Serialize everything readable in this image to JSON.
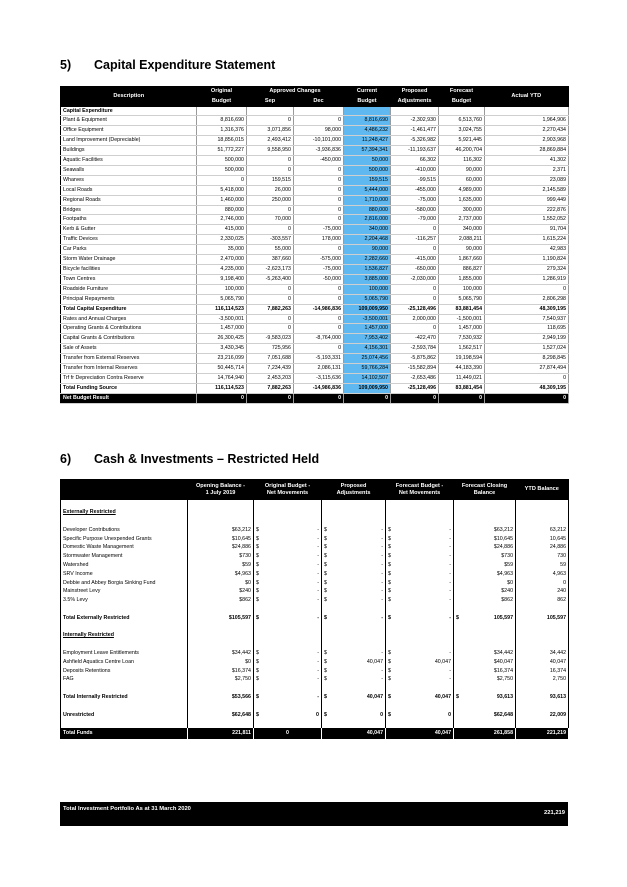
{
  "capex": {
    "number": "5)",
    "title": "Capital Expenditure Statement",
    "headers": {
      "description": "Description",
      "original": [
        "Original",
        "Budget"
      ],
      "approved": "Approved Changes",
      "sep": "Sep",
      "dec": "Dec",
      "current": [
        "Current",
        "Budget"
      ],
      "proposed": [
        "Proposed",
        "Adjustments"
      ],
      "forecast": [
        "Forecast",
        "Budget"
      ],
      "actual": "Actual YTD"
    },
    "rows": [
      {
        "label": "Capital Expenditure",
        "style": "sub",
        "vals": [
          "",
          "",
          "",
          "",
          "",
          "",
          ""
        ]
      },
      {
        "label": "Plant & Equipment",
        "vals": [
          "8,816,690",
          "0",
          "0",
          "8,816,690",
          "-2,302,930",
          "6,513,760",
          "1,964,906"
        ]
      },
      {
        "label": "Office Equipment",
        "vals": [
          "1,316,376",
          "3,071,856",
          "98,000",
          "4,486,232",
          "-1,461,477",
          "3,024,755",
          "2,270,434"
        ]
      },
      {
        "label": "Land Improvement (Depreciable)",
        "vals": [
          "18,856,015",
          "2,493,412",
          "-10,101,000",
          "11,248,427",
          "-5,326,982",
          "5,921,445",
          "2,903,968"
        ]
      },
      {
        "label": "Buildings",
        "vals": [
          "51,772,227",
          "9,558,950",
          "-3,936,836",
          "57,394,341",
          "-11,193,637",
          "46,200,704",
          "28,869,884"
        ]
      },
      {
        "label": "Aquatic Facilities",
        "vals": [
          "500,000",
          "0",
          "-450,000",
          "50,000",
          "66,302",
          "116,302",
          "41,302"
        ]
      },
      {
        "label": "Seawalls",
        "vals": [
          "500,000",
          "0",
          "0",
          "500,000",
          "-410,000",
          "90,000",
          "2,371"
        ]
      },
      {
        "label": "Wharves",
        "vals": [
          "0",
          "159,515",
          "0",
          "159,515",
          "-99,515",
          "60,000",
          "23,089"
        ]
      },
      {
        "label": "Local Roads",
        "vals": [
          "5,418,000",
          "26,000",
          "0",
          "5,444,000",
          "-455,000",
          "4,989,000",
          "2,145,589"
        ]
      },
      {
        "label": "Regional Roads",
        "vals": [
          "1,460,000",
          "250,000",
          "0",
          "1,710,000",
          "-75,000",
          "1,635,000",
          "999,449"
        ]
      },
      {
        "label": "Bridges",
        "vals": [
          "880,000",
          "0",
          "0",
          "880,000",
          "-580,000",
          "300,000",
          "222,876"
        ]
      },
      {
        "label": "Footpaths",
        "vals": [
          "2,746,000",
          "70,000",
          "0",
          "2,816,000",
          "-79,000",
          "2,737,000",
          "1,552,052"
        ]
      },
      {
        "label": "Kerb & Gutter",
        "vals": [
          "415,000",
          "0",
          "-75,000",
          "340,000",
          "0",
          "340,000",
          "91,704"
        ]
      },
      {
        "label": "Traffic Devices",
        "vals": [
          "2,330,025",
          "-303,557",
          "178,000",
          "2,204,468",
          "-116,257",
          "2,088,211",
          "1,615,224"
        ]
      },
      {
        "label": "Car Parks",
        "vals": [
          "35,000",
          "55,000",
          "0",
          "90,000",
          "0",
          "90,000",
          "42,983"
        ]
      },
      {
        "label": "Storm Water Drainage",
        "vals": [
          "2,470,000",
          "387,660",
          "-575,000",
          "2,282,660",
          "-415,000",
          "1,867,660",
          "1,190,824"
        ]
      },
      {
        "label": "Bicycle facilities",
        "vals": [
          "4,235,000",
          "-2,623,173",
          "-75,000",
          "1,536,827",
          "-650,000",
          "886,827",
          "279,324"
        ]
      },
      {
        "label": "Town Centres",
        "vals": [
          "9,198,400",
          "-5,263,400",
          "-50,000",
          "3,885,000",
          "-2,030,000",
          "1,855,000",
          "1,286,919"
        ]
      },
      {
        "label": "Roadside Furniture",
        "vals": [
          "100,000",
          "0",
          "0",
          "100,000",
          "0",
          "100,000",
          "0"
        ]
      },
      {
        "label": "Principal Repayments",
        "vals": [
          "5,065,790",
          "0",
          "0",
          "5,065,790",
          "0",
          "5,065,790",
          "2,806,298"
        ]
      },
      {
        "label": "Total Capital Expenditure",
        "style": "bold",
        "vals": [
          "116,114,523",
          "7,882,263",
          "-14,986,836",
          "109,009,950",
          "-25,128,496",
          "83,881,454",
          "48,309,195"
        ]
      },
      {
        "label": "Rates and Annual Charges",
        "vals": [
          "-3,500,001",
          "0",
          "0",
          "-3,500,001",
          "2,000,000",
          "-1,500,001",
          "7,540,937"
        ]
      },
      {
        "label": "Operating Grants & Contributions",
        "vals": [
          "1,457,000",
          "0",
          "0",
          "1,457,000",
          "0",
          "1,457,000",
          "118,695"
        ]
      },
      {
        "label": "Capital Grants & Contributions",
        "vals": [
          "26,300,425",
          "-9,583,023",
          "-8,764,000",
          "7,953,402",
          "-422,470",
          "7,530,932",
          "2,949,199"
        ]
      },
      {
        "label": "Sale of Assets",
        "vals": [
          "3,430,345",
          "725,956",
          "0",
          "4,156,301",
          "-2,593,784",
          "1,562,517",
          "1,527,024"
        ]
      },
      {
        "label": "Transfer from External Reserves",
        "vals": [
          "23,216,099",
          "7,051,688",
          "-5,193,331",
          "25,074,456",
          "-5,875,862",
          "19,198,594",
          "8,298,845"
        ]
      },
      {
        "label": "Transfer from Internal Reserves",
        "vals": [
          "50,445,714",
          "7,234,439",
          "2,086,131",
          "59,766,284",
          "-15,582,894",
          "44,183,390",
          "27,874,494"
        ]
      },
      {
        "label": "Trf fr Depreciation Contra Reserve",
        "vals": [
          "14,764,940",
          "2,453,203",
          "-3,115,636",
          "14,102,507",
          "-2,653,486",
          "11,449,021",
          "0"
        ]
      },
      {
        "label": "Total Funding Source",
        "style": "bold",
        "vals": [
          "116,114,523",
          "7,882,263",
          "-14,986,836",
          "109,009,950",
          "-25,128,496",
          "83,881,454",
          "48,309,195"
        ]
      },
      {
        "label": "Net Budget Result",
        "style": "net",
        "vals": [
          "0",
          "0",
          "0",
          "0",
          "0",
          "0",
          "0"
        ]
      }
    ]
  },
  "cash": {
    "number": "6)",
    "title": "Cash & Investments – Restricted Held",
    "headers": {
      "opening": [
        "Opening Balance -",
        "1 July 2019"
      ],
      "original": [
        "Original Budget -",
        "Net Movements"
      ],
      "proposed": [
        "Proposed",
        "Adjustments"
      ],
      "forecast": [
        "Forecast Budget -",
        "Net Movements"
      ],
      "closing": [
        "Forecast Closing",
        "Balance"
      ],
      "ytd": "YTD Balance"
    },
    "rows": [
      {
        "type": "blank"
      },
      {
        "type": "gh",
        "label": "Externally Restricted"
      },
      {
        "type": "blank"
      },
      {
        "type": "row",
        "label": "Developer Contributions",
        "opening": "$63,212",
        "orig_s": "$",
        "orig": "-",
        "prop_s": "$",
        "prop": "-",
        "fc_s": "$",
        "fc": "-",
        "close_s": "",
        "close": "$63,212",
        "ytd": "63,212"
      },
      {
        "type": "row",
        "label": "Specific Purpose Unexpended Grants",
        "opening": "$10,645",
        "orig_s": "$",
        "orig": "-",
        "prop_s": "$",
        "prop": "-",
        "fc_s": "$",
        "fc": "-",
        "close_s": "",
        "close": "$10,645",
        "ytd": "10,645"
      },
      {
        "type": "row",
        "label": "Domestic Waste Management",
        "opening": "$24,886",
        "orig_s": "$",
        "orig": "-",
        "prop_s": "$",
        "prop": "-",
        "fc_s": "$",
        "fc": "-",
        "close_s": "",
        "close": "$24,886",
        "ytd": "24,886"
      },
      {
        "type": "row",
        "label": "Stormwater Management",
        "opening": "$730",
        "orig_s": "$",
        "orig": "-",
        "prop_s": "$",
        "prop": "-",
        "fc_s": "$",
        "fc": "-",
        "close_s": "",
        "close": "$730",
        "ytd": "730"
      },
      {
        "type": "row",
        "label": "Watershed",
        "opening": "$59",
        "orig_s": "$",
        "orig": "-",
        "prop_s": "$",
        "prop": "-",
        "fc_s": "$",
        "fc": "-",
        "close_s": "",
        "close": "$59",
        "ytd": "59"
      },
      {
        "type": "row",
        "label": "SRV Income",
        "opening": "$4,963",
        "orig_s": "$",
        "orig": "-",
        "prop_s": "$",
        "prop": "-",
        "fc_s": "$",
        "fc": "-",
        "close_s": "",
        "close": "$4,963",
        "ytd": "4,963"
      },
      {
        "type": "row",
        "label": "Debbie and Abbey Borgia Sinking Fund",
        "opening": "$0",
        "orig_s": "$",
        "orig": "-",
        "prop_s": "$",
        "prop": "-",
        "fc_s": "$",
        "fc": "-",
        "close_s": "",
        "close": "$0",
        "ytd": "0"
      },
      {
        "type": "row",
        "label": "Mainstreet Levy",
        "opening": "$240",
        "orig_s": "$",
        "orig": "-",
        "prop_s": "$",
        "prop": "-",
        "fc_s": "$",
        "fc": "-",
        "close_s": "",
        "close": "$240",
        "ytd": "240"
      },
      {
        "type": "row",
        "label": "3.5% Levy",
        "opening": "$862",
        "orig_s": "$",
        "orig": "-",
        "prop_s": "$",
        "prop": "-",
        "fc_s": "$",
        "fc": "-",
        "close_s": "",
        "close": "$862",
        "ytd": "862"
      },
      {
        "type": "blank"
      },
      {
        "type": "tot",
        "label": "Total Externally Restricted",
        "opening": "$105,597",
        "orig_s": "$",
        "orig": "-",
        "prop_s": "$",
        "prop": "-",
        "fc_s": "$",
        "fc": "-",
        "close_s": "$",
        "close": "105,597",
        "ytd": "105,597"
      },
      {
        "type": "blank"
      },
      {
        "type": "gh",
        "label": "Internally Restricted"
      },
      {
        "type": "blank"
      },
      {
        "type": "row",
        "label": "Employment Leave Entitlements",
        "opening": "$34,442",
        "orig_s": "$",
        "orig": "-",
        "prop_s": "$",
        "prop": "-",
        "fc_s": "$",
        "fc": "-",
        "close_s": "",
        "close": "$34,442",
        "ytd": "34,442"
      },
      {
        "type": "row",
        "label": "Ashfield Aquatics Centre Loan",
        "opening": "$0",
        "orig_s": "$",
        "orig": "-",
        "prop_s": "$",
        "prop": "40,047",
        "fc_s": "$",
        "fc": "40,047",
        "close_s": "",
        "close": "$40,047",
        "ytd": "40,047"
      },
      {
        "type": "row",
        "label": "Deposits Retentions",
        "opening": "$16,374",
        "orig_s": "$",
        "orig": "-",
        "prop_s": "$",
        "prop": "-",
        "fc_s": "$",
        "fc": "-",
        "close_s": "",
        "close": "$16,374",
        "ytd": "16,374"
      },
      {
        "type": "row",
        "label": "FAG",
        "opening": "$2,750",
        "orig_s": "$",
        "orig": "-",
        "prop_s": "$",
        "prop": "-",
        "fc_s": "$",
        "fc": "-",
        "close_s": "",
        "close": "$2,750",
        "ytd": "2,750"
      },
      {
        "type": "blank"
      },
      {
        "type": "tot",
        "label": "Total Internally Restricted",
        "opening": "$53,566",
        "orig_s": "$",
        "orig": "-",
        "prop_s": "$",
        "prop": "40,047",
        "fc_s": "$",
        "fc": "40,047",
        "close_s": "$",
        "close": "93,613",
        "ytd": "93,613"
      },
      {
        "type": "blank"
      },
      {
        "type": "tot",
        "label": "Unrestricted",
        "opening": "$62,648",
        "orig_s": "$",
        "orig": "0",
        "prop_s": "$",
        "prop": "0",
        "fc_s": "$",
        "fc": "0",
        "close_s": "",
        "close": "$62,648",
        "ytd": "22,009"
      },
      {
        "type": "blank"
      },
      {
        "type": "funds",
        "label": "Total Funds",
        "opening": "221,811",
        "orig": "0",
        "prop": "40,047",
        "fc": "40,047",
        "close": "261,858",
        "ytd": "221,219"
      }
    ],
    "portfolio": {
      "label": "Total Investment Portfolio As at 31 March 2020",
      "value": "221,219"
    }
  }
}
